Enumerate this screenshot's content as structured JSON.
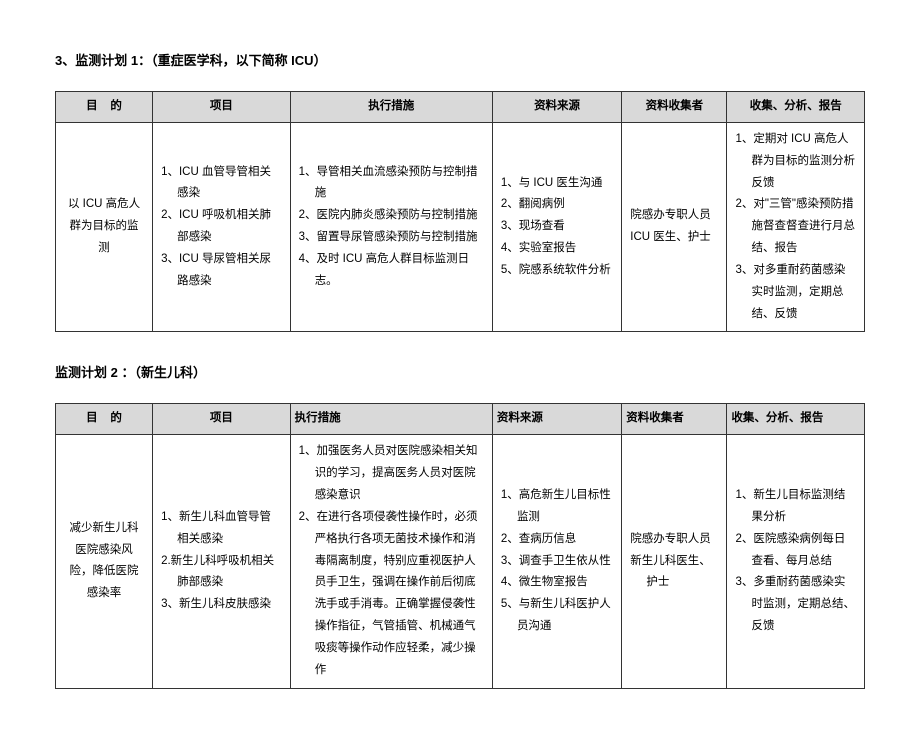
{
  "plan1": {
    "title": "3、监测计划 1：（重症医学科，以下简称 ICU）",
    "headers": {
      "purpose_1": "目",
      "purpose_2": "的",
      "item": "项目",
      "action": "执行措施",
      "source": "资料来源",
      "collector": "资料收集者",
      "report": "收集、分析、报告"
    },
    "rows": [
      {
        "purpose": "以 ICU 高危人群为目标的监测",
        "items": [
          "1、ICU 血管导管相关感染",
          "2、ICU 呼吸机相关肺部感染",
          "3、ICU 导尿管相关尿路感染"
        ],
        "actions": [
          "1、导管相关血流感染预防与控制措施",
          "2、医院内肺炎感染预防与控制措施",
          "3、留置导尿管感染预防与控制措施",
          "4、及时 ICU 高危人群目标监测日志。"
        ],
        "sources": [
          "1、与 ICU 医生沟通",
          "2、翻阅病例",
          "3、现场查看",
          "4、实验室报告",
          "5、院感系统软件分析"
        ],
        "collectors": [
          "院感办专职人员",
          "ICU 医生、护士"
        ],
        "reports": [
          "1、定期对 ICU 高危人群为目标的监测分析反馈",
          "2、对\"三管\"感染预防措施督查督查进行月总结、报告",
          "3、对多重耐药菌感染实时监测，定期总结、反馈"
        ]
      }
    ]
  },
  "plan2": {
    "title": "监测计划 2 ：（新生儿科）",
    "headers": {
      "purpose_1": "目",
      "purpose_2": "的",
      "item": "项目",
      "action": "执行措施",
      "source": "资料来源",
      "collector": "资料收集者",
      "report": "收集、分析、报告"
    },
    "rows": [
      {
        "purpose": "减少新生儿科医院感染风险，降低医院感染率",
        "items": [
          "1、新生儿科血管导管相关感染",
          "2.新生儿科呼吸机相关肺部感染",
          "3、新生儿科皮肤感染"
        ],
        "actions": [
          "1、加强医务人员对医院感染相关知识的学习，提高医务人员对医院感染意识",
          "2、在进行各项侵袭性操作时，必须严格执行各项无菌技术操作和消毒隔离制度，特别应重视医护人员手卫生，强调在操作前后彻底洗手或手消毒。正确掌握侵袭性操作指征，气管插管、机械通气吸痰等操作动作应轻柔，减少操作"
        ],
        "sources": [
          "1、高危新生儿目标性监测",
          "2、查病历信息",
          "3、调查手卫生依从性",
          "4、微生物室报告",
          "5、与新生儿科医护人员沟通"
        ],
        "collectors": [
          "院感办专职人员",
          "新生儿科医生、护士"
        ],
        "reports": [
          "1、新生儿目标监测结果分析",
          "2、医院感染病例每日查看、每月总结",
          "3、多重耐药菌感染实时监测，定期总结、反馈"
        ]
      }
    ]
  }
}
